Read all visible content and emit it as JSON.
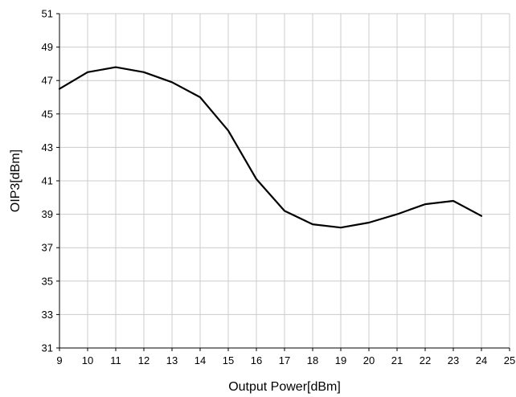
{
  "chart_data": {
    "type": "line",
    "title": "",
    "xlabel": "Output Power[dBm]",
    "ylabel": "OIP3[dBm]",
    "xlim": [
      9,
      25
    ],
    "ylim": [
      31,
      51
    ],
    "xticks": [
      "9",
      "10",
      "11",
      "12",
      "13",
      "14",
      "15",
      "16",
      "17",
      "18",
      "19",
      "20",
      "21",
      "22",
      "23",
      "24",
      "25"
    ],
    "yticks": [
      "31",
      "33",
      "35",
      "37",
      "39",
      "41",
      "43",
      "45",
      "47",
      "49",
      "51"
    ],
    "grid": true,
    "legend": "none",
    "line_color": "#000000",
    "series": [
      {
        "x": [
          9,
          10,
          11,
          12,
          13,
          14,
          15,
          16,
          17,
          18,
          19,
          20,
          21,
          22,
          23,
          24
        ],
        "y": [
          46.5,
          47.5,
          47.8,
          47.5,
          46.9,
          46.0,
          44.0,
          41.1,
          39.2,
          38.4,
          38.2,
          38.5,
          39.0,
          39.6,
          39.8,
          38.9
        ]
      }
    ]
  }
}
